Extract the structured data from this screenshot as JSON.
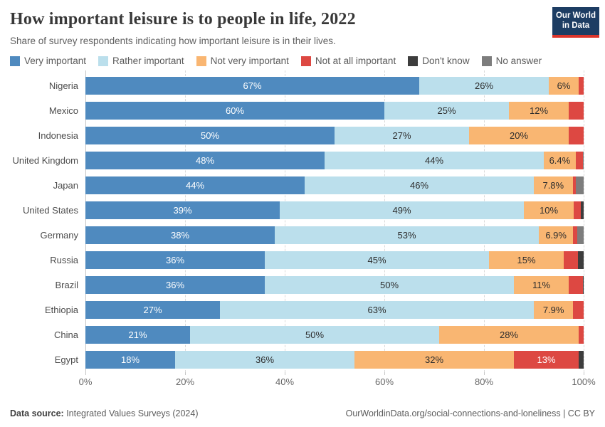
{
  "header": {
    "title": "How important leisure is to people in life, 2022",
    "subtitle": "Share of survey respondents indicating how important leisure is in their lives.",
    "logo": {
      "line1": "Our World",
      "line2": "in Data",
      "bg_color": "#1d3d63",
      "accent_color": "#dc352b"
    }
  },
  "legend": [
    {
      "label": "Very important",
      "color": "#4f8abf"
    },
    {
      "label": "Rather important",
      "color": "#bbdfec"
    },
    {
      "label": "Not very important",
      "color": "#f9b672"
    },
    {
      "label": "Not at all important",
      "color": "#dd4842"
    },
    {
      "label": "Don't know",
      "color": "#3d3d3d"
    },
    {
      "label": "No answer",
      "color": "#7d7d7d"
    }
  ],
  "chart_data": {
    "type": "bar",
    "stacked": true,
    "orientation": "horizontal",
    "title": "How important leisure is to people in life, 2022",
    "categories": [
      "Nigeria",
      "Mexico",
      "Indonesia",
      "United Kingdom",
      "Japan",
      "United States",
      "Germany",
      "Russia",
      "Brazil",
      "Ethiopia",
      "China",
      "Egypt"
    ],
    "series": [
      {
        "name": "Very important",
        "color": "#4f8abf",
        "label_color": "#ffffff",
        "values": [
          67,
          60,
          50,
          48,
          44,
          39,
          38,
          36,
          36,
          27,
          21,
          18
        ]
      },
      {
        "name": "Rather important",
        "color": "#bbdfec",
        "label_color": "#2d2d2d",
        "values": [
          26,
          25,
          27,
          44,
          46,
          49,
          53,
          45,
          50,
          63,
          50,
          36
        ]
      },
      {
        "name": "Not very important",
        "color": "#f9b672",
        "label_color": "#2d2d2d",
        "values": [
          6,
          12,
          20,
          6.4,
          7.8,
          10,
          6.9,
          15,
          11,
          7.9,
          28,
          32
        ]
      },
      {
        "name": "Not at all important",
        "color": "#dd4842",
        "label_color": "#ffffff",
        "values": [
          1,
          3,
          3,
          1.4,
          0.7,
          1.4,
          0.8,
          2.8,
          2.8,
          2.1,
          1,
          13
        ]
      },
      {
        "name": "Don't know",
        "color": "#3d3d3d",
        "label_color": "#ffffff",
        "values": [
          0,
          0,
          0,
          0,
          0,
          0.6,
          0,
          1.2,
          0.2,
          0,
          0,
          1
        ]
      },
      {
        "name": "No answer",
        "color": "#7d7d7d",
        "label_color": "#ffffff",
        "values": [
          0,
          0,
          0,
          0.2,
          1.5,
          0,
          1.3,
          0,
          0,
          0,
          0,
          0
        ]
      }
    ],
    "label_min_value": 5,
    "x_ticks": [
      0,
      20,
      40,
      60,
      80,
      100
    ],
    "x_tick_labels": [
      "0%",
      "20%",
      "40%",
      "60%",
      "80%",
      "100%"
    ],
    "xlim": [
      0,
      100
    ],
    "grid": true,
    "legend_position": "top"
  },
  "footer": {
    "datasource_label": "Data source:",
    "datasource_value": " Integrated Values Surveys (2024)",
    "right_text": "OurWorldinData.org/social-connections-and-loneliness | CC BY"
  }
}
